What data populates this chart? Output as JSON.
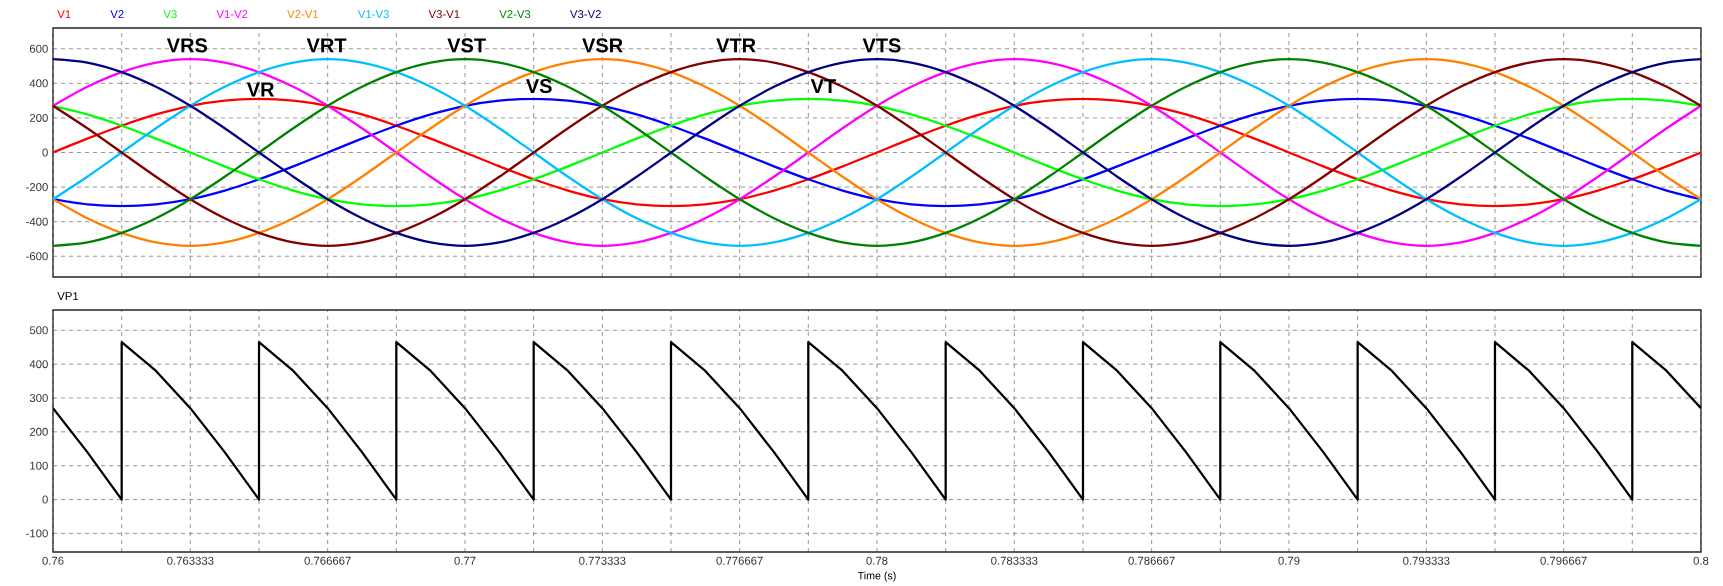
{
  "chart_data": [
    {
      "type": "line",
      "legend": "top left",
      "grid": true,
      "tick_labels": "y",
      "x": [
        0.76,
        0.760833,
        0.761667,
        0.7625,
        0.763333,
        0.764167,
        0.765,
        0.765833,
        0.766667,
        0.7675,
        0.768333,
        0.769167,
        0.77,
        0.770833,
        0.771667,
        0.7725,
        0.773333,
        0.774167,
        0.775,
        0.775833,
        0.776667,
        0.7775,
        0.778333,
        0.779167,
        0.78,
        0.780833,
        0.781667,
        0.7825,
        0.783333,
        0.784167,
        0.785,
        0.785833,
        0.786667,
        0.7875,
        0.788333,
        0.789167,
        0.79,
        0.790833,
        0.791667,
        0.7925,
        0.793333,
        0.794167,
        0.795,
        0.795833,
        0.796667,
        0.7975,
        0.798333,
        0.799167,
        0.8
      ],
      "series": [
        {
          "name": "V1",
          "color": "#ff0000",
          "values": [
            0,
            80,
            155,
            220,
            270,
            300,
            310,
            300,
            270,
            220,
            155,
            80,
            0,
            -80,
            -155,
            -220,
            -270,
            -300,
            -310,
            -300,
            -270,
            -220,
            -155,
            -80,
            0,
            80,
            155,
            220,
            270,
            300,
            310,
            300,
            270,
            220,
            155,
            80,
            0,
            -80,
            -155,
            -220,
            -270,
            -300,
            -310,
            -300,
            -270,
            -220,
            -155,
            -80,
            0
          ]
        },
        {
          "name": "V2",
          "color": "#0000ff",
          "values": [
            -270,
            -300,
            -310,
            -300,
            -270,
            -220,
            -155,
            -80,
            0,
            80,
            155,
            220,
            270,
            300,
            310,
            300,
            270,
            220,
            155,
            80,
            0,
            -80,
            -155,
            -220,
            -270,
            -300,
            -310,
            -300,
            -270,
            -220,
            -155,
            -80,
            0,
            80,
            155,
            220,
            270,
            300,
            310,
            300,
            270,
            220,
            155,
            80,
            0,
            -80,
            -155,
            -220,
            -270
          ]
        },
        {
          "name": "V3",
          "color": "#00ff00",
          "values": [
            270,
            220,
            155,
            80,
            0,
            -80,
            -155,
            -220,
            -270,
            -300,
            -310,
            -300,
            -270,
            -220,
            -155,
            -80,
            0,
            80,
            155,
            220,
            270,
            300,
            310,
            300,
            270,
            220,
            155,
            80,
            0,
            -80,
            -155,
            -220,
            -270,
            -300,
            -310,
            -300,
            -270,
            -220,
            -155,
            -80,
            0,
            80,
            155,
            220,
            270,
            300,
            310,
            300,
            270
          ]
        },
        {
          "name": "V1-V2",
          "color": "#ff00ff",
          "values": [
            270,
            380,
            465,
            520,
            540,
            520,
            465,
            380,
            270,
            140,
            0,
            -140,
            -270,
            -380,
            -465,
            -520,
            -540,
            -520,
            -465,
            -380,
            -270,
            -140,
            0,
            140,
            270,
            380,
            465,
            520,
            540,
            520,
            465,
            380,
            270,
            140,
            0,
            -140,
            -270,
            -380,
            -465,
            -520,
            -540,
            -520,
            -465,
            -380,
            -270,
            -140,
            0,
            140,
            270
          ]
        },
        {
          "name": "V2-V1",
          "color": "#ff8000",
          "values": [
            -270,
            -380,
            -465,
            -520,
            -540,
            -520,
            -465,
            -380,
            -270,
            -140,
            0,
            140,
            270,
            380,
            465,
            520,
            540,
            520,
            465,
            380,
            270,
            140,
            0,
            -140,
            -270,
            -380,
            -465,
            -520,
            -540,
            -520,
            -465,
            -380,
            -270,
            -140,
            0,
            140,
            270,
            380,
            465,
            520,
            540,
            520,
            465,
            380,
            270,
            140,
            0,
            -140,
            -270
          ]
        },
        {
          "name": "V1-V3",
          "color": "#00bfff",
          "values": [
            -270,
            -140,
            0,
            140,
            270,
            380,
            465,
            520,
            540,
            520,
            465,
            380,
            270,
            140,
            0,
            -140,
            -270,
            -380,
            -465,
            -520,
            -540,
            -520,
            -465,
            -380,
            -270,
            -140,
            0,
            140,
            270,
            380,
            465,
            520,
            540,
            520,
            465,
            380,
            270,
            140,
            0,
            -140,
            -270,
            -380,
            -465,
            -520,
            -540,
            -520,
            -465,
            -380,
            -270
          ]
        },
        {
          "name": "V3-V1",
          "color": "#800000",
          "values": [
            270,
            140,
            0,
            -140,
            -270,
            -380,
            -465,
            -520,
            -540,
            -520,
            -465,
            -380,
            -270,
            -140,
            0,
            140,
            270,
            380,
            465,
            520,
            540,
            520,
            465,
            380,
            270,
            140,
            0,
            -140,
            -270,
            -380,
            -465,
            -520,
            -540,
            -520,
            -465,
            -380,
            -270,
            -140,
            0,
            140,
            270,
            380,
            465,
            520,
            540,
            520,
            465,
            380,
            270
          ]
        },
        {
          "name": "V2-V3",
          "color": "#008000",
          "values": [
            -540,
            -520,
            -465,
            -380,
            -270,
            -140,
            0,
            140,
            270,
            380,
            465,
            520,
            540,
            520,
            465,
            380,
            270,
            140,
            0,
            -140,
            -270,
            -380,
            -465,
            -520,
            -540,
            -520,
            -465,
            -380,
            -270,
            -140,
            0,
            140,
            270,
            380,
            465,
            520,
            540,
            520,
            465,
            380,
            270,
            140,
            0,
            -140,
            -270,
            -380,
            -465,
            -520,
            -540
          ]
        },
        {
          "name": "V3-V2",
          "color": "#000080",
          "values": [
            540,
            520,
            465,
            380,
            270,
            140,
            0,
            -140,
            -270,
            -380,
            -465,
            -520,
            -540,
            -520,
            -465,
            -380,
            -270,
            -140,
            0,
            140,
            270,
            380,
            465,
            520,
            540,
            520,
            465,
            380,
            270,
            140,
            0,
            -140,
            -270,
            -380,
            -465,
            -520,
            -540,
            -520,
            -465,
            -380,
            -270,
            -140,
            0,
            140,
            270,
            380,
            465,
            520,
            540
          ]
        }
      ],
      "xlim": [
        0.76,
        0.8
      ],
      "ylim": [
        -720,
        720
      ],
      "xticks": [
        0.76,
        {
          "value": 0.761667,
          "label": null
        },
        0.763333,
        {
          "value": 0.765,
          "label": null
        },
        0.766667,
        {
          "value": 0.768333,
          "label": null
        },
        0.77,
        {
          "value": 0.771667,
          "label": null
        },
        0.773333,
        {
          "value": 0.775,
          "label": null
        },
        0.776667,
        {
          "value": 0.778333,
          "label": null
        },
        0.78,
        {
          "value": 0.781667,
          "label": null
        },
        0.783333,
        {
          "value": 0.785,
          "label": null
        },
        0.786667,
        {
          "value": 0.788333,
          "label": null
        },
        0.79,
        {
          "value": 0.791667,
          "label": null
        },
        0.793333,
        {
          "value": 0.795,
          "label": null
        },
        0.796667,
        {
          "value": 0.798333,
          "label": null
        },
        0.8
      ],
      "yticks": [
        -600,
        -400,
        -200,
        0,
        200,
        400,
        600
      ],
      "annotations": [
        "VRS",
        "VRT",
        "VST",
        "VSR",
        "VTR",
        "VTS",
        "VR",
        "VS",
        "VT"
      ]
    },
    {
      "type": "line",
      "legend": "top left",
      "grid": true,
      "xlabel": "Time (s)",
      "series": [
        {
          "name": "VP1",
          "color": "#000000",
          "x": [
            0.76,
            0.760833,
            0.761667,
            0.761667,
            0.7625,
            0.763333,
            0.764167,
            0.765,
            0.765,
            0.765833,
            0.766667,
            0.7675,
            0.768333,
            0.768333,
            0.769167,
            0.77,
            0.770833,
            0.771667,
            0.771667,
            0.7725,
            0.773333,
            0.774167,
            0.775,
            0.775,
            0.775833,
            0.776667,
            0.7775,
            0.778333,
            0.778333,
            0.779167,
            0.78,
            0.780833,
            0.781667,
            0.781667,
            0.7825,
            0.783333,
            0.784167,
            0.785,
            0.785,
            0.785833,
            0.786667,
            0.7875,
            0.788333,
            0.788333,
            0.789167,
            0.79,
            0.790833,
            0.791667,
            0.791667,
            0.7925,
            0.793333,
            0.794167,
            0.795,
            0.795,
            0.795833,
            0.796667,
            0.7975,
            0.798333,
            0.798333,
            0.799167,
            0.8
          ],
          "values": [
            270,
            140,
            0,
            465,
            380,
            270,
            140,
            0,
            465,
            380,
            270,
            140,
            0,
            465,
            380,
            270,
            140,
            0,
            465,
            380,
            270,
            140,
            0,
            465,
            380,
            270,
            140,
            0,
            465,
            380,
            270,
            140,
            0,
            465,
            380,
            270,
            140,
            0,
            465,
            380,
            270,
            140,
            0,
            465,
            380,
            270,
            140,
            0,
            465,
            380,
            270,
            140,
            0,
            465,
            380,
            270,
            140,
            0,
            465,
            380,
            270
          ]
        }
      ],
      "xlim": [
        0.76,
        0.8
      ],
      "ylim": [
        -155,
        560
      ],
      "xticks": [
        0.76,
        {
          "value": 0.761667,
          "label": null
        },
        0.763333,
        {
          "value": 0.765,
          "label": null
        },
        0.766667,
        {
          "value": 0.768333,
          "label": null
        },
        0.77,
        {
          "value": 0.771667,
          "label": null
        },
        0.773333,
        {
          "value": 0.775,
          "label": null
        },
        0.776667,
        {
          "value": 0.778333,
          "label": null
        },
        0.78,
        {
          "value": 0.781667,
          "label": null
        },
        0.783333,
        {
          "value": 0.785,
          "label": null
        },
        0.786667,
        {
          "value": 0.788333,
          "label": null
        },
        0.79,
        {
          "value": 0.791667,
          "label": null
        },
        0.793333,
        {
          "value": 0.795,
          "label": null
        },
        0.796667,
        {
          "value": 0.798333,
          "label": null
        },
        0.8
      ],
      "yticks": [
        -100,
        0,
        100,
        200,
        300,
        400,
        500
      ]
    }
  ]
}
